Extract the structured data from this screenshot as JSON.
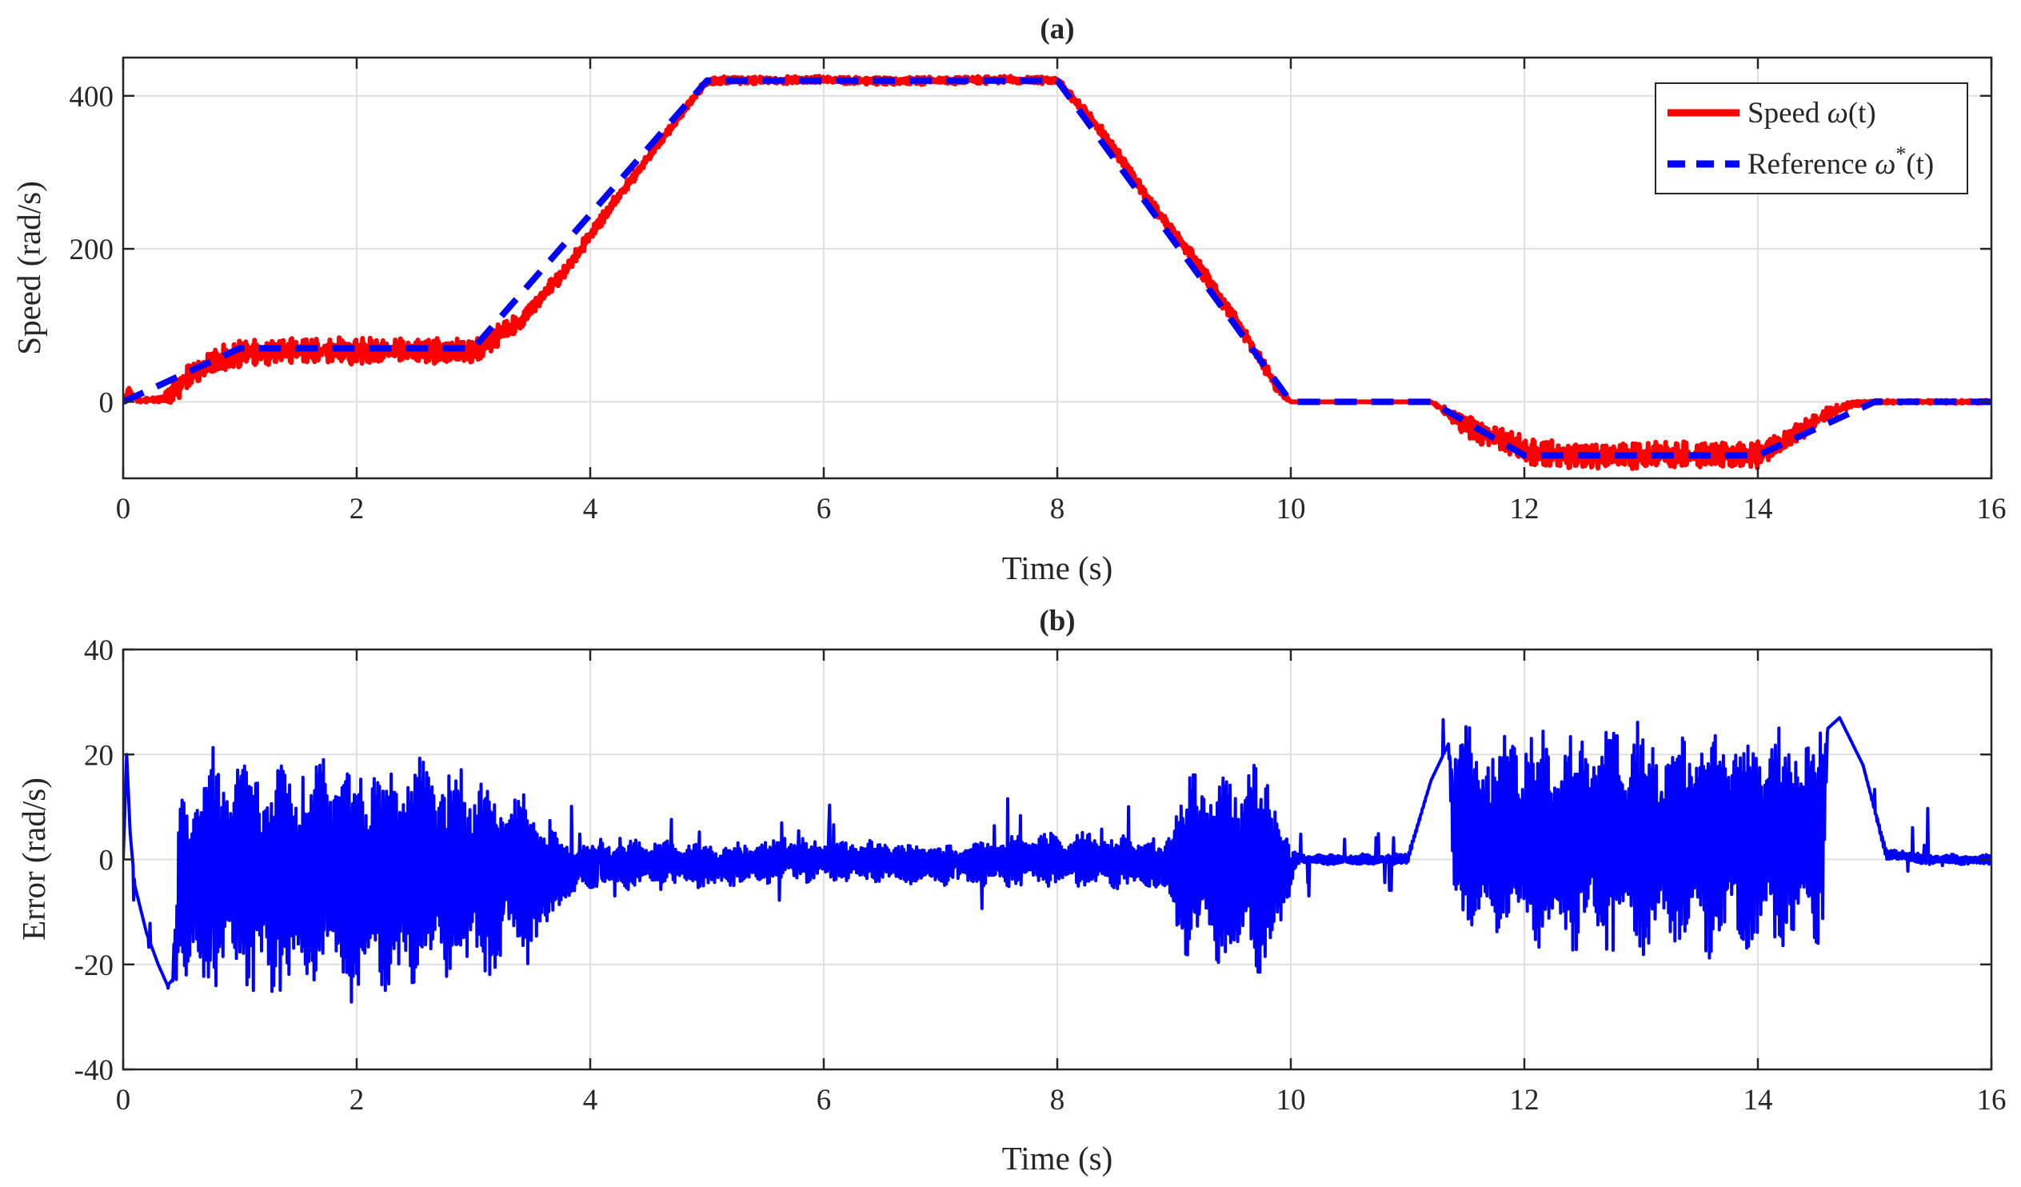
{
  "colors": {
    "speed": "#ff0000",
    "reference": "#0000ff",
    "error": "#0000ff",
    "grid": "#dfdfdf",
    "axes": "#262626",
    "background": "#ffffff"
  },
  "chart_data": [
    {
      "type": "line",
      "title": "(a)",
      "xlabel": "Time (s)",
      "ylabel": "Speed (rad/s)",
      "xlim": [
        0,
        16
      ],
      "ylim": [
        -100,
        450
      ],
      "xticks": [
        0,
        2,
        4,
        6,
        8,
        10,
        12,
        14,
        16
      ],
      "yticks": [
        0,
        200,
        400
      ],
      "xtick_labels": [
        "0",
        "2",
        "4",
        "6",
        "8",
        "10",
        "12",
        "14",
        "16"
      ],
      "ytick_labels": [
        "0",
        "200",
        "400"
      ],
      "grid": true,
      "legend": {
        "position": "top-right",
        "entries": [
          {
            "label": "Speed ",
            "symbol": "ω",
            "suffix": "(t)"
          },
          {
            "label": "Reference ",
            "symbol": "ω",
            "sup": "*",
            "suffix": "(t)"
          }
        ]
      },
      "series": [
        {
          "name": "Speed ω(t)",
          "style": "solid-noisy",
          "x": [
            0,
            0.05,
            0.1,
            0.15,
            0.2,
            0.3,
            0.4,
            0.5,
            0.7,
            0.9,
            1.1,
            1.5,
            2.0,
            2.5,
            3.0,
            3.4,
            3.8,
            4.2,
            4.6,
            5.0,
            5.5,
            6.0,
            6.5,
            7.0,
            7.5,
            8.0,
            8.4,
            8.8,
            9.2,
            9.6,
            9.9,
            10.0,
            10.5,
            11.0,
            11.2,
            11.5,
            11.8,
            12.1,
            12.5,
            13.0,
            13.5,
            14.0,
            14.3,
            14.6,
            14.8,
            15.0,
            15.5,
            16.0
          ],
          "y": [
            0,
            15,
            5,
            2,
            2,
            3,
            8,
            25,
            45,
            60,
            65,
            68,
            67,
            66,
            66,
            105,
            175,
            260,
            340,
            420,
            420,
            421,
            419,
            420,
            421,
            420,
            350,
            260,
            180,
            90,
            15,
            0,
            0,
            0,
            0,
            -30,
            -50,
            -68,
            -70,
            -70,
            -69,
            -70,
            -45,
            -15,
            -3,
            0,
            0,
            0
          ],
          "noise_amplitude": [
            0,
            5,
            5,
            3,
            3,
            3,
            12,
            18,
            18,
            18,
            18,
            18,
            18,
            18,
            18,
            12,
            10,
            8,
            6,
            5,
            5,
            5,
            5,
            5,
            5,
            5,
            8,
            8,
            10,
            10,
            8,
            0,
            0,
            0,
            0,
            16,
            18,
            18,
            18,
            18,
            18,
            18,
            14,
            8,
            4,
            2,
            2,
            2
          ]
        },
        {
          "name": "Reference ω*(t)",
          "style": "dashed",
          "x": [
            0,
            1,
            3,
            5,
            8,
            10,
            11.2,
            12,
            14,
            15,
            16
          ],
          "y": [
            0,
            70,
            70,
            420,
            420,
            0,
            0,
            -70,
            -70,
            0,
            0
          ]
        }
      ]
    },
    {
      "type": "line",
      "title": "(b)",
      "xlabel": "Time (s)",
      "ylabel": "Error (rad/s)",
      "xlim": [
        0,
        16
      ],
      "ylim": [
        -40,
        40
      ],
      "xticks": [
        0,
        2,
        4,
        6,
        8,
        10,
        12,
        14,
        16
      ],
      "yticks": [
        -40,
        -20,
        0,
        20,
        40
      ],
      "xtick_labels": [
        "0",
        "2",
        "4",
        "6",
        "8",
        "10",
        "12",
        "14",
        "16"
      ],
      "ytick_labels": [
        "-40",
        "-20",
        "0",
        "20",
        "40"
      ],
      "grid": true,
      "series": [
        {
          "name": "Error",
          "style": "solid-oscillating",
          "x": [
            0,
            0.03,
            0.06,
            0.1,
            0.2,
            0.3,
            0.38,
            0.42,
            0.5,
            1.0,
            1.5,
            2.0,
            2.5,
            3.0,
            3.4,
            3.65,
            3.75,
            4.0,
            5.0,
            6.0,
            7.0,
            8.0,
            8.9,
            9.05,
            9.3,
            9.6,
            9.85,
            9.95,
            10.05,
            10.5,
            11.0,
            11.2,
            11.35,
            11.4,
            12.0,
            13.0,
            14.0,
            14.55,
            14.6,
            14.7,
            14.9,
            15.1,
            15.5,
            16.0
          ],
          "y": [
            0,
            20,
            5,
            -5,
            -14,
            -20,
            -24,
            -23,
            -3,
            -3,
            -3,
            -3,
            -3,
            -3,
            -3,
            -3,
            -3,
            -1,
            -1,
            0,
            -1,
            0,
            -1,
            -1,
            -1,
            -1,
            -1,
            -3,
            0,
            0,
            0,
            15,
            22,
            5,
            4,
            4,
            4,
            4,
            25,
            27,
            18,
            1,
            0,
            0
          ],
          "oscillation_amplitude": [
            0,
            0,
            0,
            0,
            0,
            0,
            0,
            0,
            22,
            23,
            23,
            23,
            22,
            20,
            17,
            12,
            6,
            5,
            4,
            4,
            4,
            5,
            5,
            16,
            19,
            21,
            18,
            8,
            1,
            1,
            1,
            0,
            0,
            20,
            20,
            22,
            21,
            20,
            0,
            0,
            0,
            1,
            1,
            1
          ]
        }
      ]
    }
  ]
}
